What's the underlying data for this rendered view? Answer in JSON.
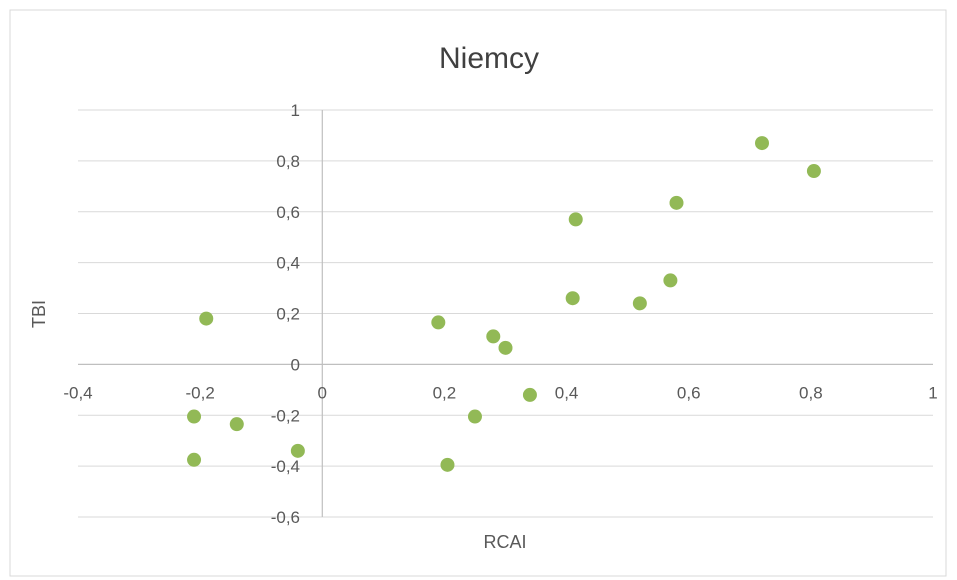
{
  "chart_data": {
    "type": "scatter",
    "title": "Niemcy",
    "xlabel": "RCAI",
    "ylabel": "TBI",
    "xlim": [
      -0.4,
      1
    ],
    "ylim": [
      -0.6,
      1
    ],
    "x_ticks": [
      "-0,4",
      "-0,2",
      "0",
      "0,2",
      "0,4",
      "0,6",
      "0,8",
      "1"
    ],
    "y_ticks": [
      "1",
      "0,8",
      "0,6",
      "0,4",
      "0,2",
      "0",
      "-0,2",
      "-0,4",
      "-0,6"
    ],
    "grid": true,
    "legend": "none",
    "point_color": "#92b956",
    "points": [
      {
        "x": 0.72,
        "y": 0.87
      },
      {
        "x": 0.805,
        "y": 0.76
      },
      {
        "x": 0.58,
        "y": 0.635
      },
      {
        "x": 0.415,
        "y": 0.57
      },
      {
        "x": 0.57,
        "y": 0.33
      },
      {
        "x": 0.41,
        "y": 0.26
      },
      {
        "x": 0.52,
        "y": 0.24
      },
      {
        "x": -0.19,
        "y": 0.18
      },
      {
        "x": 0.19,
        "y": 0.165
      },
      {
        "x": 0.28,
        "y": 0.11
      },
      {
        "x": 0.3,
        "y": 0.065
      },
      {
        "x": 0.34,
        "y": -0.12
      },
      {
        "x": 0.25,
        "y": -0.205
      },
      {
        "x": -0.21,
        "y": -0.205
      },
      {
        "x": -0.14,
        "y": -0.235
      },
      {
        "x": -0.04,
        "y": -0.34
      },
      {
        "x": -0.21,
        "y": -0.375
      },
      {
        "x": 0.205,
        "y": -0.395
      }
    ]
  }
}
